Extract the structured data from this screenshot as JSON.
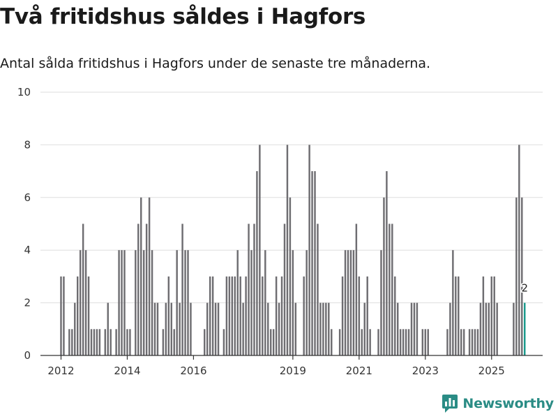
{
  "chart_data": {
    "type": "bar",
    "title": "Två fritidshus såldes i Hagfors",
    "subtitle": "Antal sålda fritidshus i Hagfors under de senaste tre månaderna.",
    "xlabel": "",
    "ylabel": "",
    "ylim": [
      0,
      10
    ],
    "yticks": [
      0,
      2,
      4,
      6,
      8,
      10
    ],
    "xlim": [
      2011.4,
      2026.5
    ],
    "xticks": [
      {
        "label": "2012",
        "value": 2012.0
      },
      {
        "label": "2014",
        "value": 2014.0
      },
      {
        "label": "2016",
        "value": 2016.0
      },
      {
        "label": "2019",
        "value": 2019.0
      },
      {
        "label": "2021",
        "value": 2021.0
      },
      {
        "label": "2023",
        "value": 2023.0
      },
      {
        "label": "2025",
        "value": 2025.0
      }
    ],
    "grid": true,
    "start": 2012.0,
    "step": 0.08333,
    "values": [
      3,
      3,
      0,
      1,
      1,
      2,
      3,
      4,
      5,
      4,
      3,
      1,
      1,
      1,
      1,
      0,
      1,
      2,
      1,
      0,
      1,
      4,
      4,
      4,
      1,
      1,
      0,
      4,
      5,
      6,
      4,
      5,
      6,
      4,
      2,
      2,
      0,
      1,
      2,
      3,
      2,
      1,
      4,
      2,
      5,
      4,
      4,
      2,
      0,
      0,
      0,
      0,
      1,
      2,
      3,
      3,
      2,
      2,
      0,
      1,
      3,
      3,
      3,
      3,
      4,
      3,
      2,
      3,
      5,
      4,
      5,
      7,
      8,
      3,
      4,
      2,
      1,
      1,
      3,
      2,
      3,
      5,
      8,
      6,
      4,
      2,
      0,
      0,
      3,
      4,
      8,
      7,
      7,
      5,
      2,
      2,
      2,
      2,
      1,
      0,
      0,
      1,
      3,
      4,
      4,
      4,
      4,
      5,
      3,
      1,
      2,
      3,
      1,
      0,
      0,
      1,
      4,
      6,
      7,
      5,
      5,
      3,
      2,
      1,
      1,
      1,
      1,
      2,
      2,
      2,
      0,
      1,
      1,
      1,
      0,
      0,
      0,
      0,
      0,
      0,
      1,
      2,
      4,
      3,
      3,
      1,
      1,
      0,
      1,
      1,
      1,
      1,
      2,
      3,
      2,
      2,
      3,
      3,
      2,
      0,
      0,
      0,
      0,
      0,
      2,
      6,
      8,
      6,
      2
    ],
    "highlight_color": "#1a9a8c",
    "bar_color": "#6e6d71",
    "data_label": "2"
  },
  "brand": {
    "name": "Newsworthy",
    "color": "#2a8c85",
    "icon": "bar-chart-speech-icon"
  }
}
